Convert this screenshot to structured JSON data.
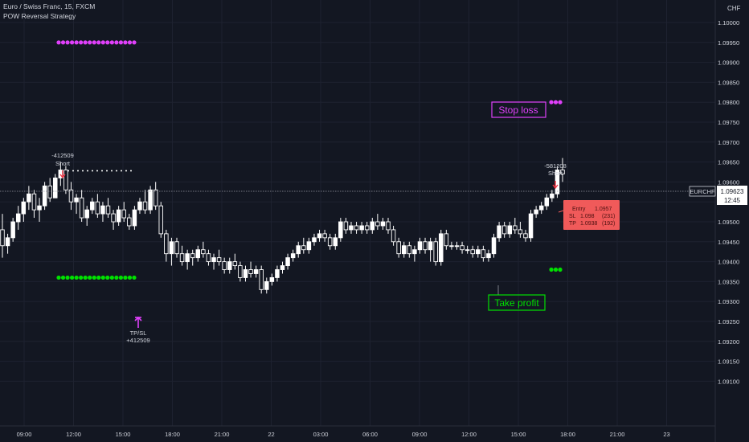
{
  "header": {
    "symbol_line": "Euro / Swiss Franc, 15, FXCM",
    "indicator_name": "POW Reversal Strategy"
  },
  "price_axis": {
    "currency": "CHF",
    "ticks": [
      "1.10000",
      "1.09950",
      "1.09900",
      "1.09850",
      "1.09800",
      "1.09750",
      "1.09700",
      "1.09650",
      "1.09600",
      "1.09550",
      "1.09500",
      "1.09450",
      "1.09400",
      "1.09350",
      "1.09300",
      "1.09250",
      "1.09200",
      "1.09150",
      "1.09100"
    ],
    "symbol_tag": "EURCHF",
    "last_price": "1.09623",
    "countdown": "12:45"
  },
  "time_axis": {
    "ticks": [
      "09:00",
      "12:00",
      "15:00",
      "18:00",
      "21:00",
      "22",
      "03:00",
      "06:00",
      "09:00",
      "12:00",
      "15:00",
      "18:00",
      "21:00",
      "23"
    ]
  },
  "annotations": {
    "short1": {
      "value": "-412509",
      "label": "Short"
    },
    "tp_sl": {
      "label": "TP/SL",
      "value": "+412509"
    },
    "short2": {
      "value": "-581208",
      "label": "Short"
    },
    "stop_loss_label": "Stop loss",
    "take_profit_label": "Take profit",
    "trade_box": {
      "entry_label": "Entry",
      "entry_value": "1.0957",
      "sl_label": "SL",
      "sl_value": "1.098",
      "sl_pips": "(231)",
      "tp_label": "TP",
      "tp_value": "1.0938",
      "tp_pips": "(192)"
    }
  },
  "colors": {
    "background": "#131722",
    "grid": "#1e2230",
    "candle": "#ffffff",
    "stop_dots": "#e040fb",
    "tp_dots": "#00e000",
    "short_arrow": "#f23645",
    "trade_box": "#f05a5a",
    "stop_box": "#e040fb",
    "tp_box": "#00e000"
  },
  "chart_data": {
    "type": "candlestick",
    "interval": "15",
    "ylim": [
      1.091,
      1.1002
    ],
    "candles": [
      [
        1.0948,
        1.0952,
        1.0941,
        1.0944
      ],
      [
        1.0944,
        1.0947,
        1.0942,
        1.0946
      ],
      [
        1.0946,
        1.0951,
        1.0945,
        1.095
      ],
      [
        1.095,
        1.0954,
        1.0948,
        1.0952
      ],
      [
        1.0952,
        1.0956,
        1.095,
        1.0955
      ],
      [
        1.0955,
        1.0959,
        1.0953,
        1.0957
      ],
      [
        1.0957,
        1.0958,
        1.0951,
        1.0953
      ],
      [
        1.0953,
        1.0956,
        1.095,
        1.0954
      ],
      [
        1.0954,
        1.096,
        1.0953,
        1.0959
      ],
      [
        1.0959,
        1.0961,
        1.0955,
        1.0956
      ],
      [
        1.0956,
        1.0962,
        1.0956,
        1.0961
      ],
      [
        1.0961,
        1.0965,
        1.0959,
        1.0963
      ],
      [
        1.0963,
        1.0964,
        1.0957,
        1.0958
      ],
      [
        1.0958,
        1.096,
        1.0953,
        1.0955
      ],
      [
        1.0955,
        1.0957,
        1.0952,
        1.0956
      ],
      [
        1.0956,
        1.0958,
        1.095,
        1.0951
      ],
      [
        1.0951,
        1.0954,
        1.0949,
        1.0953
      ],
      [
        1.0953,
        1.0956,
        1.0952,
        1.0955
      ],
      [
        1.0955,
        1.0957,
        1.0951,
        1.0952
      ],
      [
        1.0952,
        1.0955,
        1.095,
        1.0954
      ],
      [
        1.0954,
        1.0956,
        1.0951,
        1.0952
      ],
      [
        1.0952,
        1.0953,
        1.0948,
        1.095
      ],
      [
        1.095,
        1.0954,
        1.0949,
        1.0953
      ],
      [
        1.0953,
        1.0955,
        1.095,
        1.0951
      ],
      [
        1.0951,
        1.0952,
        1.0948,
        1.0949
      ],
      [
        1.0949,
        1.0954,
        1.0948,
        1.0953
      ],
      [
        1.0953,
        1.0956,
        1.0952,
        1.0955
      ],
      [
        1.0955,
        1.0958,
        1.0952,
        1.0953
      ],
      [
        1.0953,
        1.0959,
        1.0952,
        1.0958
      ],
      [
        1.0958,
        1.096,
        1.0953,
        1.0954
      ],
      [
        1.0954,
        1.0955,
        1.0946,
        1.0947
      ],
      [
        1.0947,
        1.0948,
        1.094,
        1.0942
      ],
      [
        1.0942,
        1.0946,
        1.0939,
        1.0945
      ],
      [
        1.0945,
        1.0946,
        1.0941,
        1.0942
      ],
      [
        1.0942,
        1.0944,
        1.0939,
        1.094
      ],
      [
        1.094,
        1.0943,
        1.0938,
        1.0942
      ],
      [
        1.0942,
        1.0943,
        1.0939,
        1.0941
      ],
      [
        1.0941,
        1.0944,
        1.094,
        1.0943
      ],
      [
        1.0943,
        1.0945,
        1.0941,
        1.0942
      ],
      [
        1.0942,
        1.0943,
        1.0939,
        1.094
      ],
      [
        1.094,
        1.0942,
        1.0938,
        1.0941
      ],
      [
        1.0941,
        1.0943,
        1.0939,
        1.094
      ],
      [
        1.094,
        1.0941,
        1.0937,
        1.0938
      ],
      [
        1.0938,
        1.0941,
        1.0937,
        1.094
      ],
      [
        1.094,
        1.0942,
        1.0938,
        1.0939
      ],
      [
        1.0939,
        1.094,
        1.0935,
        1.0936
      ],
      [
        1.0936,
        1.0939,
        1.0935,
        1.0938
      ],
      [
        1.0938,
        1.094,
        1.0936,
        1.0937
      ],
      [
        1.0937,
        1.0939,
        1.0936,
        1.0938
      ],
      [
        1.0938,
        1.0939,
        1.0932,
        1.0933
      ],
      [
        1.0933,
        1.0936,
        1.0932,
        1.0935
      ],
      [
        1.0935,
        1.0937,
        1.0934,
        1.0936
      ],
      [
        1.0936,
        1.0939,
        1.0935,
        1.0938
      ],
      [
        1.0938,
        1.094,
        1.0937,
        1.0939
      ],
      [
        1.0939,
        1.0942,
        1.0938,
        1.0941
      ],
      [
        1.0941,
        1.0943,
        1.094,
        1.0942
      ],
      [
        1.0942,
        1.0945,
        1.0941,
        1.0944
      ],
      [
        1.0944,
        1.0946,
        1.0942,
        1.0943
      ],
      [
        1.0943,
        1.0946,
        1.0942,
        1.0945
      ],
      [
        1.0945,
        1.0947,
        1.0944,
        1.0946
      ],
      [
        1.0946,
        1.0948,
        1.0945,
        1.0947
      ],
      [
        1.0947,
        1.0948,
        1.0945,
        1.0946
      ],
      [
        1.0946,
        1.0947,
        1.0943,
        1.0944
      ],
      [
        1.0944,
        1.0947,
        1.0943,
        1.0946
      ],
      [
        1.0946,
        1.0951,
        1.0945,
        1.095
      ],
      [
        1.095,
        1.0951,
        1.0947,
        1.0948
      ],
      [
        1.0948,
        1.095,
        1.0947,
        1.0949
      ],
      [
        1.0949,
        1.095,
        1.0947,
        1.0948
      ],
      [
        1.0948,
        1.095,
        1.0947,
        1.0949
      ],
      [
        1.0949,
        1.095,
        1.0947,
        1.0948
      ],
      [
        1.0948,
        1.0951,
        1.0947,
        1.095
      ],
      [
        1.095,
        1.0952,
        1.0948,
        1.0949
      ],
      [
        1.0949,
        1.0951,
        1.0948,
        1.095
      ],
      [
        1.095,
        1.0951,
        1.0947,
        1.0948
      ],
      [
        1.0948,
        1.0949,
        1.0944,
        1.0945
      ],
      [
        1.0945,
        1.0946,
        1.0941,
        1.0942
      ],
      [
        1.0942,
        1.0945,
        1.0941,
        1.0944
      ],
      [
        1.0944,
        1.0945,
        1.0941,
        1.0942
      ],
      [
        1.0942,
        1.0944,
        1.094,
        1.0943
      ],
      [
        1.0943,
        1.0946,
        1.0942,
        1.0945
      ],
      [
        1.0945,
        1.0946,
        1.0942,
        1.0943
      ],
      [
        1.0943,
        1.0946,
        1.094,
        1.0945
      ],
      [
        1.0945,
        1.0946,
        1.0939,
        1.094
      ],
      [
        1.094,
        1.0948,
        1.0939,
        1.0947
      ],
      [
        1.0947,
        1.0948,
        1.0943,
        1.0944
      ],
      [
        1.0944,
        1.0945,
        1.0943,
        1.0944
      ],
      [
        1.0944,
        1.0945,
        1.0943,
        1.0944
      ],
      [
        1.0944,
        1.0945,
        1.0942,
        1.0943
      ],
      [
        1.0943,
        1.0944,
        1.0942,
        1.0943
      ],
      [
        1.0943,
        1.0944,
        1.0941,
        1.0942
      ],
      [
        1.0942,
        1.0944,
        1.0941,
        1.0943
      ],
      [
        1.0943,
        1.0944,
        1.094,
        1.0941
      ],
      [
        1.0941,
        1.0943,
        1.094,
        1.0942
      ],
      [
        1.0942,
        1.0947,
        1.0941,
        1.0946
      ],
      [
        1.0946,
        1.095,
        1.0945,
        1.0949
      ],
      [
        1.0949,
        1.095,
        1.0946,
        1.0947
      ],
      [
        1.0947,
        1.095,
        1.0946,
        1.0949
      ],
      [
        1.0949,
        1.0951,
        1.0947,
        1.0948
      ],
      [
        1.0948,
        1.095,
        1.0946,
        1.0947
      ],
      [
        1.0947,
        1.0948,
        1.0945,
        1.0946
      ],
      [
        1.0946,
        1.0953,
        1.0945,
        1.0952
      ],
      [
        1.0952,
        1.0954,
        1.0951,
        1.0953
      ],
      [
        1.0953,
        1.0955,
        1.0952,
        1.0954
      ],
      [
        1.0954,
        1.0957,
        1.0953,
        1.0956
      ],
      [
        1.0956,
        1.0958,
        1.0955,
        1.0957
      ],
      [
        1.0957,
        1.0964,
        1.0956,
        1.0963
      ],
      [
        1.0963,
        1.0966,
        1.096,
        1.0962
      ]
    ],
    "markers": [
      {
        "type": "entry-short",
        "label": "Short",
        "value": "-412509"
      },
      {
        "type": "exit",
        "label": "TP/SL",
        "value": "+412509"
      },
      {
        "type": "entry-short",
        "label": "Short",
        "value": "-581208"
      }
    ],
    "levels": {
      "first_trade": {
        "stop": 1.0995,
        "take_profit": 1.0936,
        "entry": 1.0962
      },
      "second_trade": {
        "entry": 1.0957,
        "stop": 1.098,
        "take_profit": 1.0938
      }
    }
  }
}
